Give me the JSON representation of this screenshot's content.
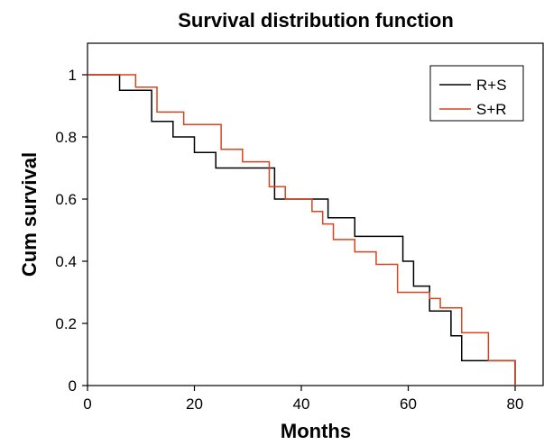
{
  "chart_data": {
    "type": "line",
    "title": "Survival distribution function",
    "xlabel": "Months",
    "ylabel": "Cum survival",
    "xlim": [
      0,
      80
    ],
    "ylim": [
      0,
      1
    ],
    "x_ticks": [
      0,
      20,
      40,
      60,
      80
    ],
    "y_ticks": [
      0,
      0.2,
      0.4,
      0.6,
      0.8,
      1
    ],
    "y_tick_labels": [
      "0",
      "0.2",
      "0.4",
      "0.6",
      "0.8",
      "1"
    ],
    "grid": false,
    "legend_position": "top-right",
    "step": true,
    "series": [
      {
        "name": "R+S",
        "color": "#000000",
        "x": [
          0,
          6,
          12,
          16,
          20,
          24,
          35,
          38,
          44,
          45,
          50,
          58,
          59,
          61,
          64,
          68,
          70,
          80,
          80
        ],
        "y": [
          1.0,
          0.95,
          0.85,
          0.8,
          0.75,
          0.7,
          0.6,
          0.6,
          0.6,
          0.54,
          0.48,
          0.48,
          0.4,
          0.32,
          0.24,
          0.16,
          0.08,
          0.08,
          0.0
        ]
      },
      {
        "name": "S+R",
        "color": "#d9441f",
        "x": [
          0,
          9,
          13,
          18,
          25,
          29,
          34,
          37,
          42,
          44,
          46,
          50,
          54,
          58,
          64,
          66,
          70,
          75,
          80
        ],
        "y": [
          1.0,
          0.96,
          0.88,
          0.84,
          0.76,
          0.72,
          0.64,
          0.6,
          0.56,
          0.52,
          0.47,
          0.43,
          0.39,
          0.3,
          0.28,
          0.25,
          0.17,
          0.08,
          0.0
        ]
      }
    ]
  }
}
